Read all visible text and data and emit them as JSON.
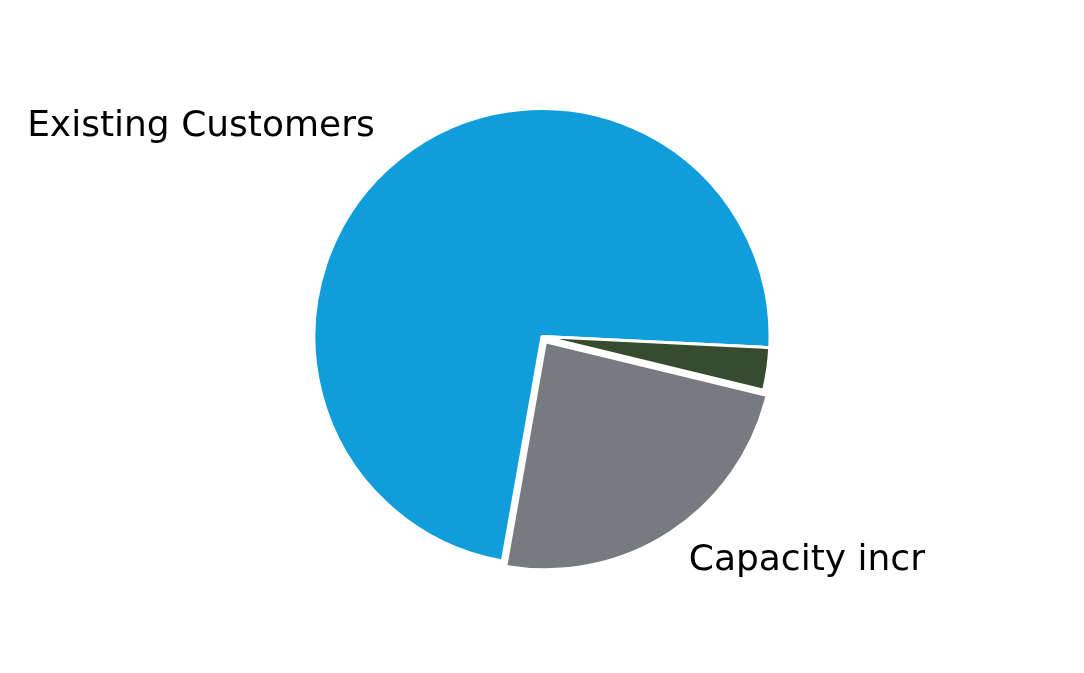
{
  "chart_data": {
    "type": "pie",
    "categories": [
      "Existing Customers",
      null,
      "Capacity incr"
    ],
    "values": [
      73,
      3,
      24
    ],
    "colors": [
      "#0f9ddb",
      "#374c2e",
      "#777a80"
    ]
  }
}
